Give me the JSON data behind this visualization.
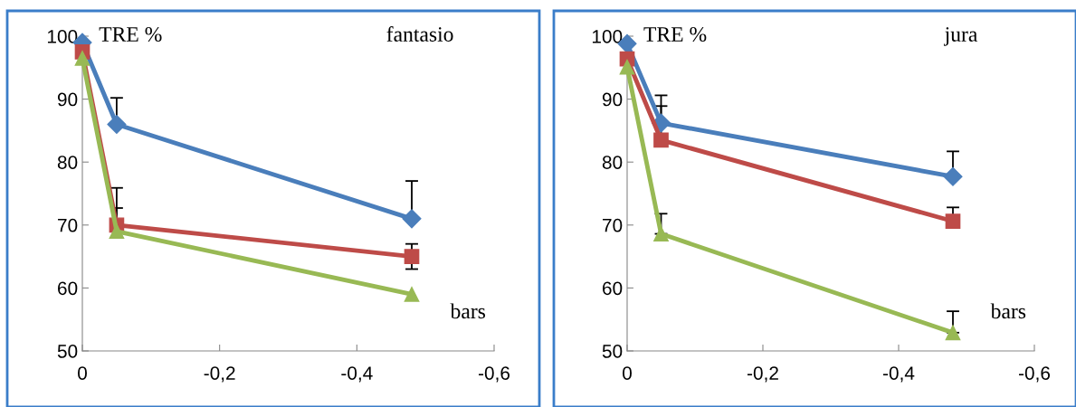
{
  "chart_data": [
    {
      "type": "line",
      "title": "fantasio",
      "ylabel": "TRE %",
      "xlabel": "bars",
      "x": [
        0,
        -0.05,
        -0.48
      ],
      "xlim": [
        0,
        -0.6
      ],
      "xticks": [
        0,
        {
          "value": -0.2,
          "label": "-0,2"
        },
        {
          "value": -0.4,
          "label": "-0,4"
        },
        {
          "value": -0.6,
          "label": "-0,6"
        }
      ],
      "ylim": [
        50,
        100
      ],
      "yticks": [
        50,
        60,
        70,
        80,
        90,
        100
      ],
      "grid": false,
      "series": [
        {
          "color": "#4a7ebb",
          "marker": "diamond",
          "values": [
            99,
            86,
            71
          ],
          "errors": [
            null,
            [
              86,
              90.2
            ],
            [
              71,
              77
            ]
          ]
        },
        {
          "color": "#be4b48",
          "marker": "square",
          "values": [
            97.5,
            70,
            65
          ],
          "errors": [
            null,
            [
              70,
              72.7
            ],
            [
              63,
              67
            ]
          ]
        },
        {
          "color": "#98b954",
          "marker": "triangle",
          "values": [
            96.5,
            69,
            59
          ],
          "errors": [
            null,
            [
              69,
              75.9
            ],
            null
          ]
        }
      ]
    },
    {
      "type": "line",
      "title": "jura",
      "ylabel": "TRE %",
      "xlabel": "bars",
      "x": [
        0,
        -0.05,
        -0.48
      ],
      "xlim": [
        0,
        -0.6
      ],
      "xticks": [
        0,
        {
          "value": -0.2,
          "label": "-0,2"
        },
        {
          "value": -0.4,
          "label": "-0,4"
        },
        {
          "value": -0.6,
          "label": "-0,6"
        }
      ],
      "ylim": [
        50,
        100
      ],
      "yticks": [
        50,
        60,
        70,
        80,
        90,
        100
      ],
      "grid": false,
      "series": [
        {
          "color": "#4a7ebb",
          "marker": "diamond",
          "values": [
            98.8,
            86.2,
            77.7
          ],
          "errors": [
            null,
            [
              86.2,
              90.6
            ],
            [
              77.7,
              81.7
            ]
          ]
        },
        {
          "color": "#be4b48",
          "marker": "square",
          "values": [
            96.4,
            83.5,
            70.6
          ],
          "errors": [
            null,
            [
              83.5,
              88.9
            ],
            [
              70.6,
              72.8
            ]
          ]
        },
        {
          "color": "#98b954",
          "marker": "triangle",
          "values": [
            95.1,
            68.6,
            52.9
          ],
          "errors": [
            null,
            [
              68.6,
              71.8
            ],
            [
              52.9,
              56.3
            ]
          ]
        }
      ]
    }
  ]
}
